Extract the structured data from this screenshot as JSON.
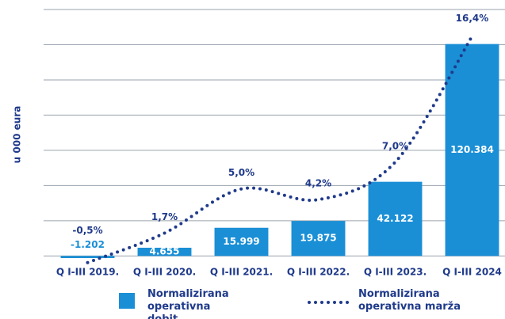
{
  "chart_data": {
    "type": "bar",
    "y_label": "u 000 eura",
    "categories": [
      "Q I-III 2019.",
      "Q I-III 2020.",
      "Q I-III 2021.",
      "Q I-III 2022.",
      "Q I-III 2023.",
      "Q I-III 2024"
    ],
    "series": [
      {
        "name": "Normalizirana operativna dobit",
        "color": "#1a8fd6",
        "type": "bar",
        "values": [
          -1202,
          4655,
          15999,
          19875,
          42122,
          120384
        ],
        "value_labels": [
          "-1.202",
          "4.655",
          "15.999",
          "19.875",
          "42.122",
          "120.384"
        ]
      },
      {
        "name": "Normalizirana operativna marža",
        "color": "#1f3a8a",
        "type": "line",
        "axis": "y2",
        "values": [
          -0.5,
          1.7,
          5.0,
          4.2,
          7.0,
          16.4
        ],
        "value_labels": [
          "-0,5%",
          "1,7%",
          "5,0%",
          "4,2%",
          "7,0%",
          "16,4%"
        ]
      }
    ],
    "ylim": [
      -3000,
      140000
    ],
    "yticks": [
      0,
      20000,
      40000,
      60000,
      80000,
      100000,
      120000,
      140000
    ],
    "y2lim": [
      -0.4,
      18.4
    ],
    "grid": true
  }
}
